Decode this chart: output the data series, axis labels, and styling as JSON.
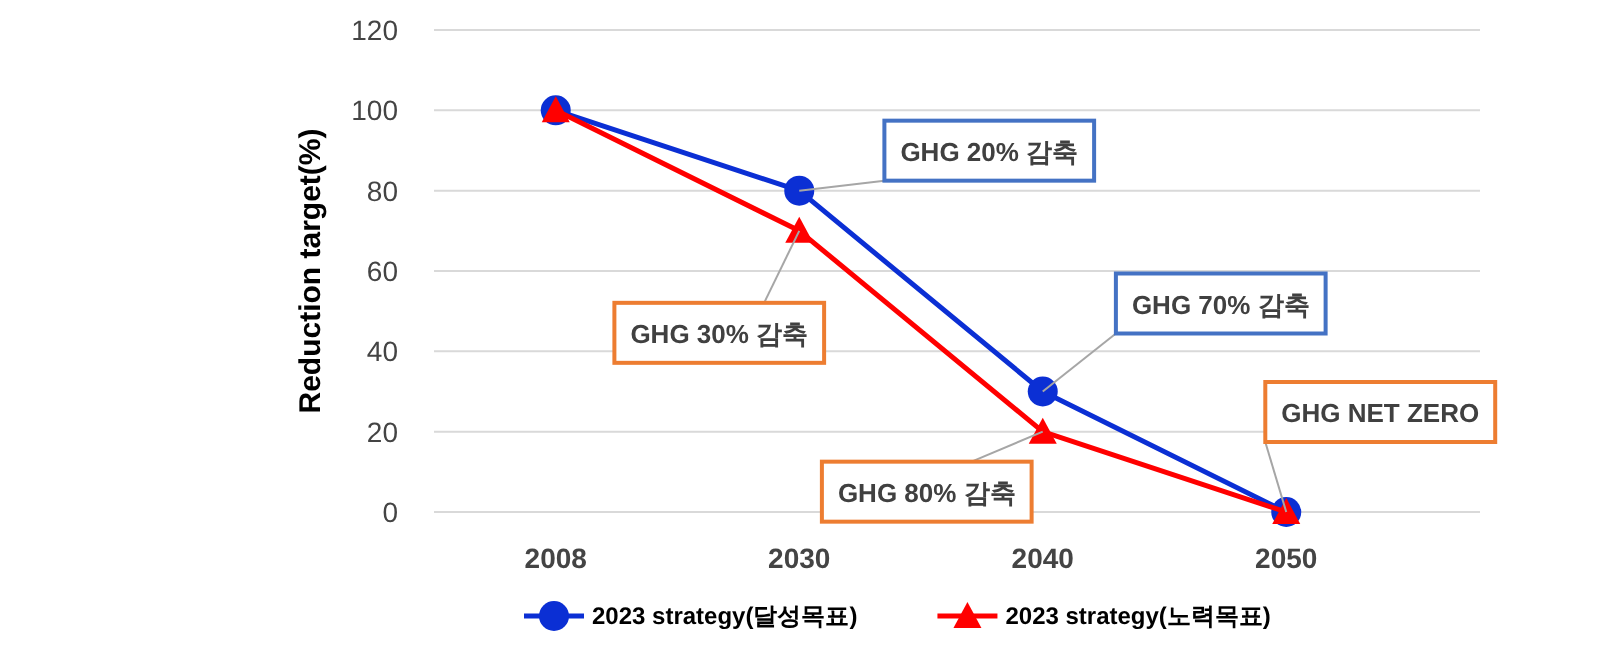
{
  "chart_data": {
    "type": "line",
    "ylabel": "Reduction target(%)",
    "categories": [
      "2008",
      "2030",
      "2040",
      "2050"
    ],
    "series": [
      {
        "name": "2023 strategy(달성목표)",
        "color": "#0b2fd4",
        "marker": "circle",
        "values": [
          100,
          80,
          30,
          0
        ]
      },
      {
        "name": "2023 strategy(노력목표)",
        "color": "#ff0000",
        "marker": "triangle",
        "values": [
          100,
          70,
          20,
          0
        ]
      }
    ],
    "ylim": [
      0,
      120
    ],
    "yticks": [
      0,
      20,
      40,
      60,
      80,
      100,
      120
    ],
    "grid": "y",
    "legend": "bottom",
    "annotations": [
      {
        "text": "GHG 20% 감축",
        "x": "2030",
        "y": 80
      },
      {
        "text": "GHG 30% 감축",
        "x": "2030",
        "y": 70
      },
      {
        "text": "GHG 70% 감축",
        "x": "2040",
        "y": 30
      },
      {
        "text": "GHG 80% 감축",
        "x": "2040",
        "y": 20
      },
      {
        "text": "GHG NET ZERO",
        "x": "2050",
        "y": 0
      }
    ]
  }
}
